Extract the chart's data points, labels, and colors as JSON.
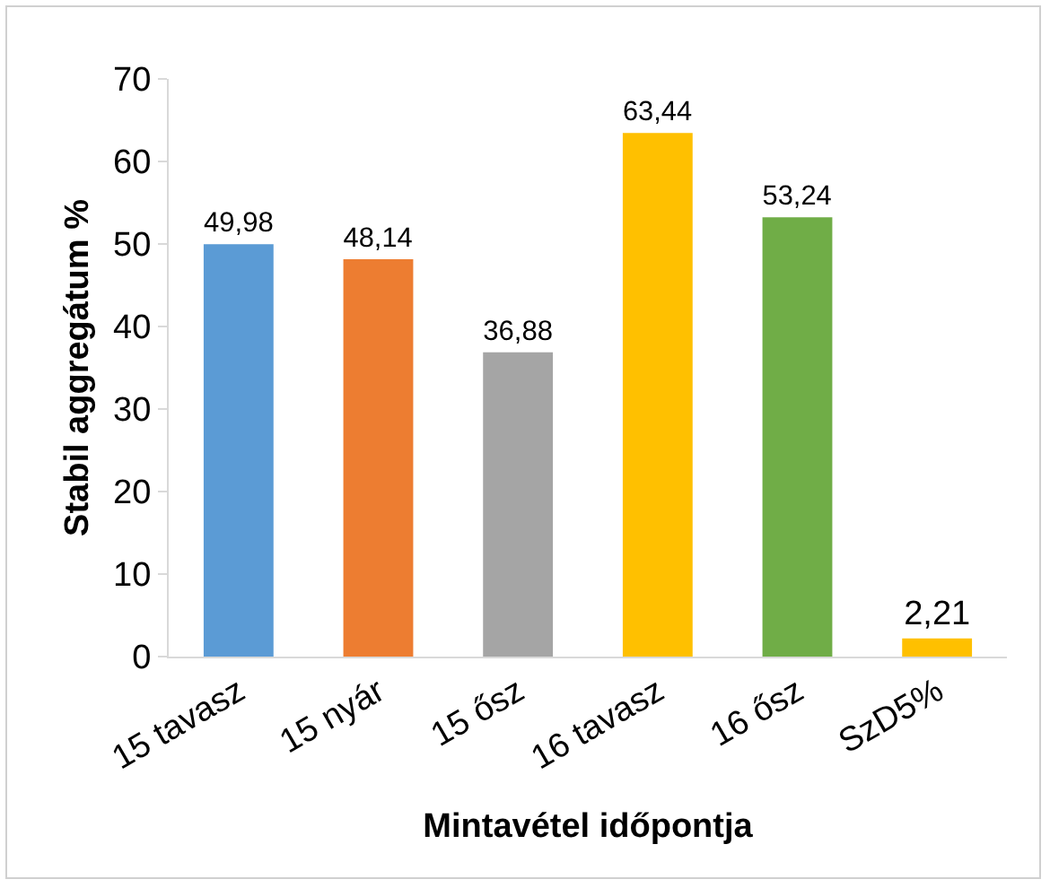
{
  "chart_data": {
    "type": "bar",
    "categories": [
      "15 tavasz",
      "15 nyár",
      "15 ősz",
      "16 tavasz",
      "16 ősz",
      "SzD5%"
    ],
    "values": [
      49.98,
      48.14,
      36.88,
      63.44,
      53.24,
      2.21
    ],
    "value_labels": [
      "49,98",
      "48,14",
      "36,88",
      "63,44",
      "53,24",
      "2,21"
    ],
    "colors": [
      "#5b9bd5",
      "#ed7d31",
      "#a5a5a5",
      "#ffc000",
      "#70ad47",
      "#ffc000"
    ],
    "xlabel": "Mintavétel időpontja",
    "ylabel": "Stabil aggregátum %",
    "ylim": [
      0,
      70
    ],
    "yticks": [
      0,
      10,
      20,
      30,
      40,
      50,
      60,
      70
    ],
    "grid": false,
    "legend": false
  }
}
